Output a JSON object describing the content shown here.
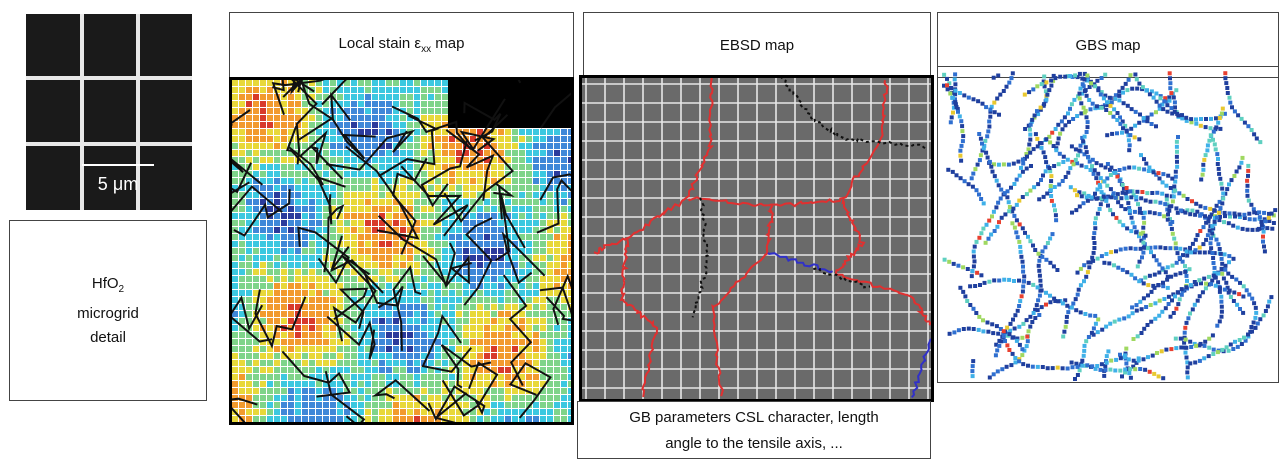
{
  "micrograph": {
    "scale_value": "5",
    "scale_unit": "μm",
    "colors": {
      "background": "#1a1a1a",
      "grid": "#e8e8e8"
    }
  },
  "detail_box": {
    "line1_base": "HfO",
    "line1_sub": "2",
    "line2": "microgrid",
    "line3": "detail"
  },
  "panels": {
    "strain": {
      "title_prefix": "Local stain ε",
      "title_sub": "xx",
      "title_suffix": " map",
      "palette": [
        "#2b3b9c",
        "#3f88d8",
        "#3cc8e0",
        "#7fd48a",
        "#e8d83a",
        "#f29a2e",
        "#d83a2b"
      ]
    },
    "ebsd": {
      "title": "EBSD map",
      "caption_line1": "GB parameters CSL character, length",
      "caption_line2": "angle to the tensile axis, ...",
      "colors": {
        "background": "#6a6a6a",
        "grid": "#e6e6e6",
        "boundary_high": "#e03030",
        "boundary_low": "#3030c8",
        "boundary_twin": "#111111"
      }
    },
    "gbs": {
      "title": "GBS map",
      "palette": [
        "#1f3f9e",
        "#2f6fd0",
        "#3fb0e8",
        "#5fd0c0",
        "#9fd860",
        "#e8c830",
        "#e84030"
      ]
    }
  }
}
